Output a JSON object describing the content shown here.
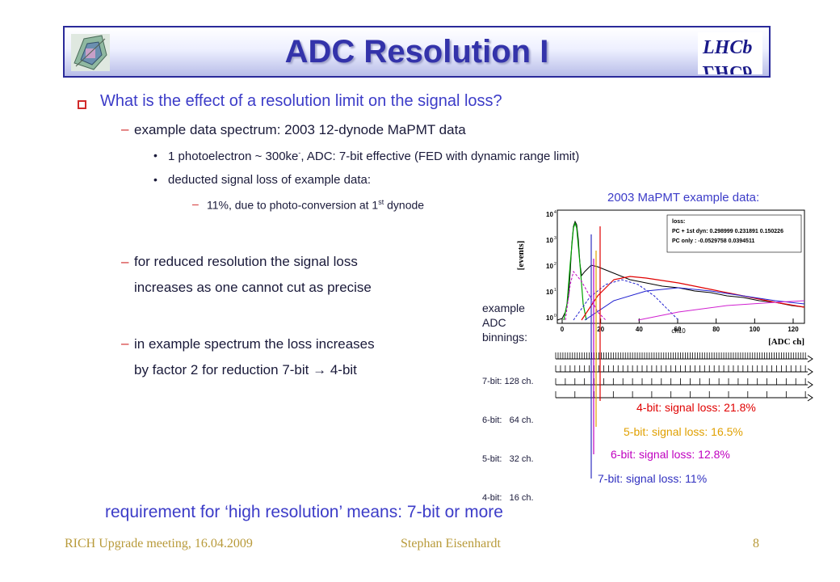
{
  "title": "ADC Resolution I",
  "bullets": {
    "main": "What is the effect of a resolution limit on the signal loss?",
    "example": "example data spectrum: 2003 12-dynode MaPMT data",
    "photo_pre": "1 photoelectron ~ 300ke",
    "photo_sup": "-",
    "photo_post": ", ADC: 7-bit effective (FED with dynamic range limit)",
    "deducted": "deducted signal loss of example data:",
    "loss_pre": "11%, due to photo-conversion at 1",
    "loss_sup": "st",
    "loss_post": " dynode",
    "reduced_1": "for reduced resolution the signal loss",
    "reduced_2": "increases as one cannot cut as precise",
    "increase_1": "in example spectrum the loss increases",
    "increase_2_pre": "by factor 2 for reduction 7-bit ",
    "arrow": "→",
    "increase_2_post": " 4-bit",
    "requirement": "requirement for ‘high resolution’ means: 7-bit or more"
  },
  "figure": {
    "caption": "2003 MaPMT example data:",
    "ylabel": "[events]",
    "xlabel": "[ADC ch]",
    "xaxis_name": "ch10",
    "xticks": [
      "0",
      "20",
      "40",
      "60",
      "80",
      "100",
      "120"
    ],
    "yticks": [
      "10",
      "10",
      "10",
      "10",
      "10"
    ],
    "yexps": [
      "4",
      "3",
      "2",
      "1",
      "0"
    ],
    "legend_title": "loss:",
    "legend_row1": "PC + 1st dyn: 0.298999  0.231891  0.150226",
    "legend_row2": "PC only      : -0.0529758  0.0394511",
    "binnings_title": [
      "example",
      "ADC",
      "binnings:"
    ],
    "binnings": [
      "7-bit: 128 ch.",
      "6-bit:   64 ch.",
      "5-bit:   32 ch.",
      "4-bit:   16 ch."
    ],
    "losses": [
      {
        "label": "4-bit: signal loss: 21.8%",
        "color": "#e00000"
      },
      {
        "label": "5-bit: signal loss: 16.5%",
        "color": "#e0a000"
      },
      {
        "label": "6-bit: signal loss: 12.8%",
        "color": "#c000c0"
      },
      {
        "label": "7-bit: signal loss: 11%",
        "color": "#3030c0"
      }
    ]
  },
  "footer": {
    "left": "RICH Upgrade meeting, 16.04.2009",
    "center": "Stephan Eisenhardt",
    "right": "8"
  },
  "colors": {
    "title": "#3333aa",
    "bullet_main": "#3c3cc8",
    "marker": "#d12a2a",
    "footer": "#b89a3a"
  },
  "icons": [
    "rich-detector-logo",
    "lhcb-logo"
  ]
}
